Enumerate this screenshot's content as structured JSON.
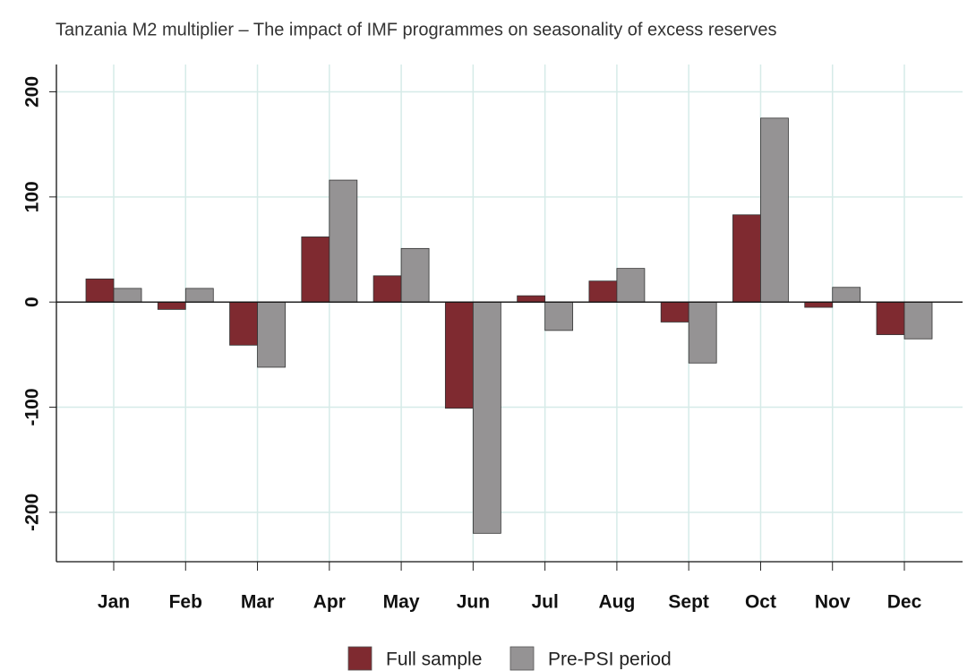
{
  "chart_data": {
    "type": "bar",
    "title": "Tanzania M2 multiplier – The impact of IMF programmes on seasonality of excess reserves",
    "categories": [
      "Jan",
      "Feb",
      "Mar",
      "Apr",
      "May",
      "Jun",
      "Jul",
      "Aug",
      "Sept",
      "Oct",
      "Nov",
      "Dec"
    ],
    "series": [
      {
        "name": "Full sample",
        "color": "#7f2a30",
        "values": [
          22,
          -7,
          -41,
          62,
          25,
          -101,
          6,
          20,
          -19,
          83,
          -5,
          -31
        ]
      },
      {
        "name": "Pre-PSI period",
        "color": "#959394",
        "values": [
          13,
          13,
          -62,
          116,
          51,
          -220,
          -27,
          32,
          -58,
          175,
          14,
          -35
        ]
      }
    ],
    "ylim": [
      -247,
      226
    ],
    "yticks": [
      -200,
      -100,
      0,
      100,
      200
    ],
    "grid": true
  }
}
